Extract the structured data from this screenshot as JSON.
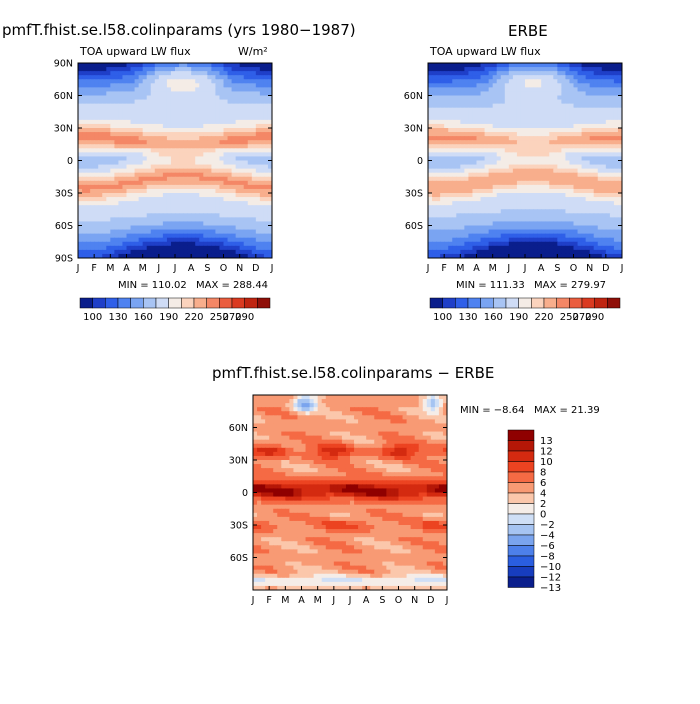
{
  "chart_data": [
    {
      "type": "heatmap",
      "title": "pmfT.fhist.se.l58.colinparams (yrs 1980−1987)",
      "subtitle": "TOA upward LW flux",
      "units": "W/m²",
      "x_ticks": [
        "J",
        "F",
        "M",
        "A",
        "M",
        "J",
        "J",
        "A",
        "S",
        "O",
        "N",
        "D",
        "J"
      ],
      "y_ticks": [
        "90N",
        "60N",
        "30N",
        "0",
        "30S",
        "60S",
        "90S"
      ],
      "y_values": [
        90,
        60,
        30,
        0,
        -30,
        -60,
        -90
      ],
      "min_text": "MIN = 110.02",
      "max_text": "MAX = 288.44",
      "colorbar_levels": [
        "100",
        "130",
        "160",
        "190",
        "220",
        "250",
        "270",
        "290"
      ],
      "min": 110.02,
      "max": 288.44
    },
    {
      "type": "heatmap",
      "title": "ERBE",
      "subtitle": "TOA upward LW flux",
      "x_ticks": [
        "J",
        "F",
        "M",
        "A",
        "M",
        "J",
        "J",
        "A",
        "S",
        "O",
        "N",
        "D",
        "J"
      ],
      "y_ticks": [
        "60N",
        "30N",
        "0",
        "30S",
        "60S"
      ],
      "y_values": [
        60,
        30,
        0,
        -30,
        -60
      ],
      "min_text": "MIN = 111.33",
      "max_text": "MAX = 279.97",
      "colorbar_levels": [
        "100",
        "130",
        "160",
        "190",
        "220",
        "250",
        "270",
        "290"
      ],
      "min": 111.33,
      "max": 279.97
    },
    {
      "type": "heatmap",
      "title": "pmfT.fhist.se.l58.colinparams − ERBE",
      "x_ticks": [
        "J",
        "F",
        "M",
        "A",
        "M",
        "J",
        "J",
        "A",
        "S",
        "O",
        "N",
        "D",
        "J"
      ],
      "y_ticks": [
        "60N",
        "30N",
        "0",
        "30S",
        "60S"
      ],
      "y_values": [
        60,
        30,
        0,
        -30,
        -60
      ],
      "min_text": "MIN =  −8.64",
      "max_text": "MAX =  21.39",
      "colorbar_levels": [
        "13",
        "12",
        "10",
        "8",
        "6",
        "4",
        "2",
        "0",
        "−2",
        "−4",
        "−6",
        "−8",
        "−10",
        "−12",
        "−13"
      ],
      "min": -8.64,
      "max": 21.39
    }
  ],
  "colors": {
    "abs_scale": [
      "#0a1e8c",
      "#1f3fc8",
      "#2f5fe8",
      "#4f82f0",
      "#7aa4f2",
      "#a8c4f4",
      "#cfdcf6",
      "#f4ece6",
      "#fbd3bd",
      "#f8ae8c",
      "#f48766",
      "#ea5d3e",
      "#da3a20",
      "#bf2410",
      "#8f0f08"
    ],
    "diff_scale": [
      "#8f0000",
      "#b51707",
      "#d42a10",
      "#ec4321",
      "#f56a44",
      "#f89a74",
      "#fbc7ab",
      "#f5ede8",
      "#cfdff6",
      "#a6c4f2",
      "#7aa4ee",
      "#4d80ea",
      "#2a5ee0",
      "#173dbe",
      "#0a1e8c"
    ]
  }
}
